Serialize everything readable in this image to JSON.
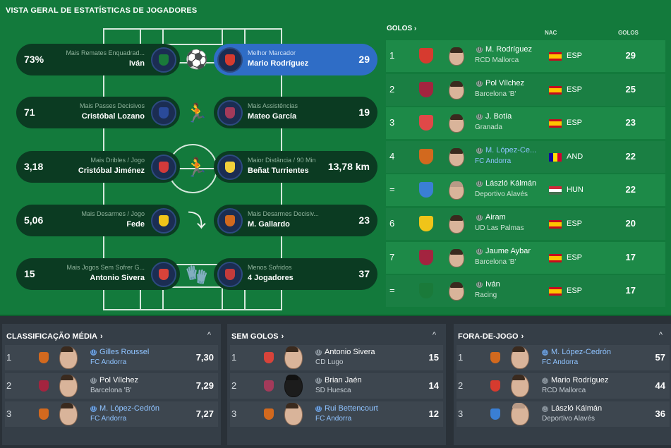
{
  "header": {
    "title": "VISTA GERAL DE ESTATÍSTICAS DE JOGADORES"
  },
  "overview": {
    "left": [
      {
        "value": "73%",
        "caption": "Mais Remates Enquadrad...",
        "player": "Iván",
        "crest_color": "#1a7a3a"
      },
      {
        "value": "71",
        "caption": "Mais Passes Decisivos",
        "player": "Cristóbal Lozano",
        "crest_color": "#2a4a9a"
      },
      {
        "value": "3,18",
        "caption": "Mais Dribles / Jogo",
        "player": "Cristóbal Jiménez",
        "crest_color": "#d23a3a"
      },
      {
        "value": "5,06",
        "caption": "Mais Desarmes / Jogo",
        "player": "Fede",
        "crest_color": "#f0c419"
      },
      {
        "value": "15",
        "caption": "Mais Jogos Sem Sofrer G...",
        "player": "Antonio Sivera",
        "crest_color": "#d8433a"
      }
    ],
    "right": [
      {
        "value": "29",
        "caption": "Melhor Marcador",
        "player": "Mario Rodríguez",
        "crest_color": "#d63b2f",
        "active": true
      },
      {
        "value": "19",
        "caption": "Mais Assistências",
        "player": "Mateo García",
        "crest_color": "#a33a5a"
      },
      {
        "value": "13,78 km",
        "caption": "Maior Distância / 90 Min",
        "player": "Beñat Turrientes",
        "crest_color": "#f3d03a"
      },
      {
        "value": "23",
        "caption": "Mais Desarmes Decisiv...",
        "player": "M. Gallardo",
        "crest_color": "#d2691e"
      },
      {
        "value": "37",
        "caption": "Menos Sofridos",
        "player": "4 Jogadores",
        "crest_color": "#c23b3b"
      }
    ]
  },
  "golos": {
    "title": "GOLOS",
    "col_nat": "NAC",
    "col_goals": "GOLOS",
    "rows": [
      {
        "pos": "1",
        "name": "M. Rodríguez",
        "club": "RCD Mallorca",
        "nat": "ESP",
        "flag": "esp",
        "goals": "29",
        "crest_color": "#d63b2f",
        "link": false
      },
      {
        "pos": "2",
        "name": "Pol Vílchez",
        "club": "Barcelona 'B'",
        "nat": "ESP",
        "flag": "esp",
        "goals": "25",
        "crest_color": "#a3243f",
        "link": false
      },
      {
        "pos": "3",
        "name": "J. Botía",
        "club": "Granada",
        "nat": "ESP",
        "flag": "esp",
        "goals": "23",
        "crest_color": "#e04848",
        "link": false
      },
      {
        "pos": "4",
        "name": "M. López-Ce...",
        "club": "FC Andorra",
        "nat": "AND",
        "flag": "and",
        "goals": "22",
        "crest_color": "#d2691e",
        "link": true
      },
      {
        "pos": "=",
        "name": "László Kálmán",
        "club": "Deportivo Alavés",
        "nat": "HUN",
        "flag": "hun",
        "goals": "22",
        "crest_color": "#3a7fd4",
        "link": false
      },
      {
        "pos": "6",
        "name": "Airam",
        "club": "UD Las Palmas",
        "nat": "ESP",
        "flag": "esp",
        "goals": "20",
        "crest_color": "#f0c419",
        "link": false
      },
      {
        "pos": "7",
        "name": "Jaume Aybar",
        "club": "Barcelona 'B'",
        "nat": "ESP",
        "flag": "esp",
        "goals": "17",
        "crest_color": "#a3243f",
        "link": false
      },
      {
        "pos": "=",
        "name": "Iván",
        "club": "Racing",
        "nat": "ESP",
        "flag": "esp",
        "goals": "17",
        "crest_color": "#1a7a3a",
        "link": false
      }
    ]
  },
  "panels": [
    {
      "title": "CLASSIFICAÇÃO MÉDIA",
      "rows": [
        {
          "pos": "1",
          "name": "Gilles Roussel",
          "club": "FC Andorra",
          "value": "7,30",
          "crest_color": "#d2691e",
          "link": true
        },
        {
          "pos": "2",
          "name": "Pol Vílchez",
          "club": "Barcelona 'B'",
          "value": "7,29",
          "crest_color": "#a3243f",
          "link": false
        },
        {
          "pos": "3",
          "name": "M. López-Cedrón",
          "club": "FC Andorra",
          "value": "7,27",
          "crest_color": "#d2691e",
          "link": true
        }
      ]
    },
    {
      "title": "SEM GOLOS",
      "rows": [
        {
          "pos": "1",
          "name": "Antonio Sivera",
          "club": "CD Lugo",
          "value": "15",
          "crest_color": "#d8433a",
          "link": false
        },
        {
          "pos": "2",
          "name": "Brian Jaén",
          "club": "SD Huesca",
          "value": "14",
          "crest_color": "#a33a5a",
          "link": false
        },
        {
          "pos": "3",
          "name": "Rui Bettencourt",
          "club": "FC Andorra",
          "value": "12",
          "crest_color": "#d2691e",
          "link": true
        }
      ]
    },
    {
      "title": "FORA-DE-JOGO",
      "rows": [
        {
          "pos": "1",
          "name": "M. López-Cedrón",
          "club": "FC Andorra",
          "value": "57",
          "crest_color": "#d2691e",
          "link": true
        },
        {
          "pos": "2",
          "name": "Mario Rodríguez",
          "club": "RCD Mallorca",
          "value": "44",
          "crest_color": "#d63b2f",
          "link": false
        },
        {
          "pos": "3",
          "name": "László Kálmán",
          "club": "Deportivo Alavés",
          "value": "36",
          "crest_color": "#3a7fd4",
          "link": false
        }
      ]
    }
  ],
  "icons": {
    "info": "ⓘ",
    "chevron": "›",
    "collapse": "^"
  },
  "colors": {
    "pitch_green": "#137a3c",
    "pill_dark": "#0b3b22",
    "pill_active": "#2f6dc6",
    "link_blue": "#8fc3ff"
  }
}
